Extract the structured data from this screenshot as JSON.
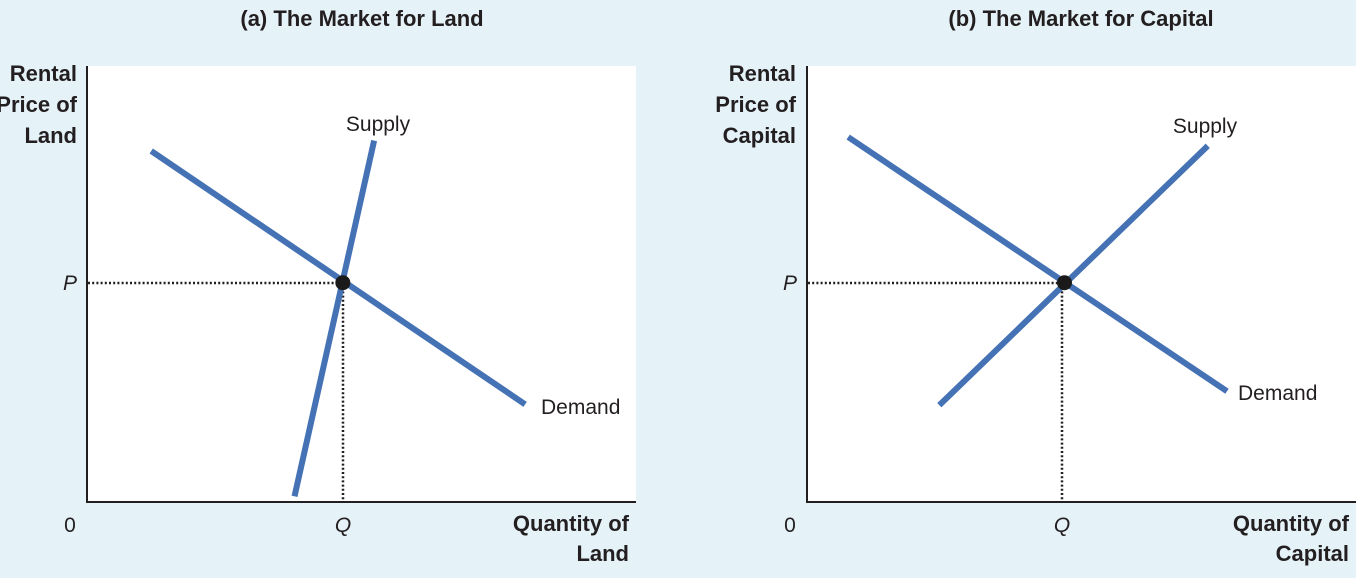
{
  "colors": {
    "background": "#e5f2f8",
    "plot_area": "#ffffff",
    "curve": "#4472b4",
    "text": "#231f20",
    "equilibrium_point": "#1a1a1a"
  },
  "panels": [
    {
      "title": "(a) The Market for Land",
      "ylabel_lines": [
        "Rental",
        "Price of",
        "Land"
      ],
      "xlabel_lines": [
        "Quantity of",
        "Land"
      ],
      "origin_label": "0",
      "price_label": "P",
      "quantity_label": "Q",
      "supply_label": "Supply",
      "demand_label": "Demand"
    },
    {
      "title": "(b) The Market for Capital",
      "ylabel_lines": [
        "Rental",
        "Price of",
        "Capital"
      ],
      "xlabel_lines": [
        "Quantity of",
        "Capital"
      ],
      "origin_label": "0",
      "price_label": "P",
      "quantity_label": "Q",
      "supply_label": "Supply",
      "demand_label": "Demand"
    }
  ],
  "chart_data": [
    {
      "type": "line",
      "title": "(a) The Market for Land",
      "xlabel": "Quantity of Land",
      "ylabel": "Rental Price of Land",
      "xlim": [
        0,
        1
      ],
      "ylim": [
        0,
        1
      ],
      "equilibrium": {
        "x": 0.466,
        "y": 0.503,
        "x_label": "Q",
        "y_label": "P"
      },
      "series": [
        {
          "name": "Supply",
          "points": [
            [
              0.378,
              0.013
            ],
            [
              0.523,
              0.829
            ]
          ]
        },
        {
          "name": "Demand",
          "points": [
            [
              0.117,
              0.805
            ],
            [
              0.798,
              0.224
            ]
          ]
        }
      ]
    },
    {
      "type": "line",
      "title": "(b) The Market for Capital",
      "xlabel": "Quantity of Capital",
      "ylabel": "Rental Price of Capital",
      "xlim": [
        0,
        1
      ],
      "ylim": [
        0,
        1
      ],
      "equilibrium": {
        "x": 0.469,
        "y": 0.503,
        "x_label": "Q",
        "y_label": "P"
      },
      "series": [
        {
          "name": "Supply",
          "points": [
            [
              0.241,
              0.222
            ],
            [
              0.73,
              0.817
            ]
          ]
        },
        {
          "name": "Demand",
          "points": [
            [
              0.075,
              0.837
            ],
            [
              0.765,
              0.254
            ]
          ]
        }
      ]
    }
  ]
}
